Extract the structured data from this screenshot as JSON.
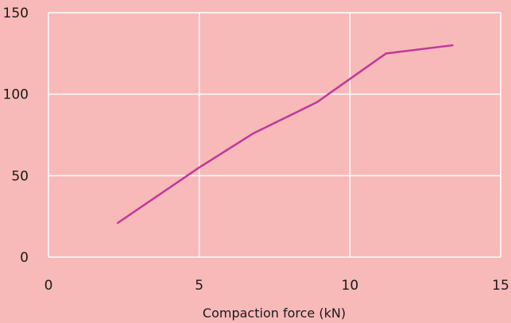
{
  "colors": {
    "background": "#f8b9b9",
    "gridline": "#ffffff",
    "line": "#c0399a"
  },
  "chart_data": {
    "type": "line",
    "title": "",
    "xlabel": "Compaction force (kN)",
    "ylabel": "",
    "xlim": [
      0,
      15
    ],
    "ylim": [
      0,
      150
    ],
    "xticks": [
      0,
      5,
      10,
      15
    ],
    "yticks": [
      0,
      50,
      100,
      150
    ],
    "grid": true,
    "series": [
      {
        "x": [
          2.3,
          5,
          6.8,
          8.9,
          11.2,
          13.4
        ],
        "y": [
          21,
          55,
          76,
          95,
          125,
          130
        ]
      }
    ]
  }
}
